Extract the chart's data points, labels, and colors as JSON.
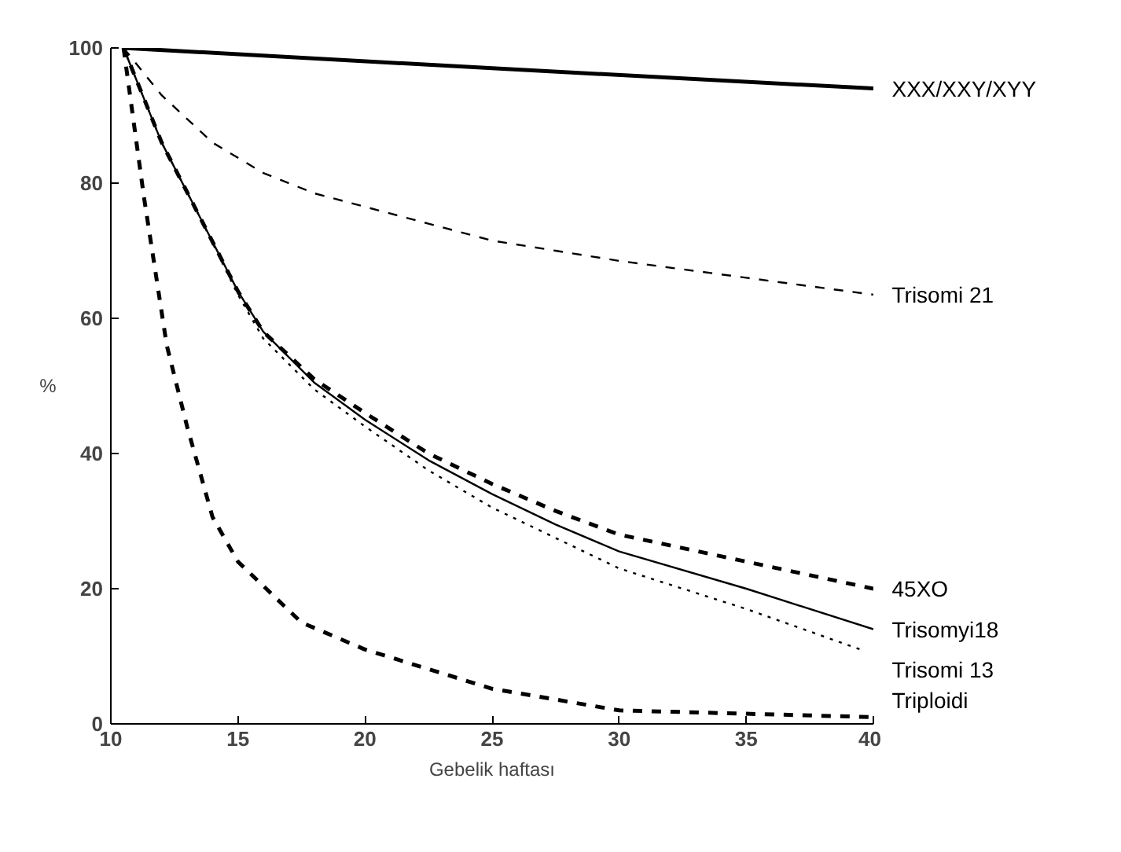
{
  "chart_data": {
    "type": "line",
    "xlabel": "Gebelik haftası",
    "ylabel": "%",
    "xlim": [
      10,
      40
    ],
    "ylim": [
      0,
      100
    ],
    "xticks": [
      10,
      15,
      20,
      25,
      30,
      35,
      40
    ],
    "yticks": [
      0,
      20,
      40,
      60,
      80,
      100
    ],
    "grid": false,
    "marker": "none",
    "series": [
      {
        "name": "XXX/XXY/XYY",
        "color": "#000000",
        "line_style": "solid",
        "x": [
          10.5,
          25,
          40
        ],
        "values": [
          100,
          97,
          94
        ]
      },
      {
        "name": "Trisomi 21",
        "color": "#000000",
        "line_style": "dashed",
        "x": [
          10.5,
          12,
          14,
          16,
          18,
          20,
          22.5,
          25,
          27.5,
          30,
          35,
          40
        ],
        "values": [
          100,
          93,
          86,
          81.5,
          78.5,
          76.5,
          74,
          71.5,
          70,
          68.5,
          66,
          63.5
        ]
      },
      {
        "name": "45XO",
        "color": "#000000",
        "line_style": "dashed",
        "x": [
          10.5,
          12,
          13.5,
          15,
          16,
          18,
          20,
          22.5,
          25,
          27.5,
          30,
          35,
          40
        ],
        "values": [
          100,
          86,
          75,
          64,
          58,
          51,
          46,
          40,
          35.5,
          31.5,
          28,
          24,
          20
        ]
      },
      {
        "name": "Trisomyi18",
        "color": "#000000",
        "line_style": "solid",
        "x": [
          10.5,
          12,
          13.5,
          15,
          16,
          18,
          20,
          22.5,
          25,
          27.5,
          30,
          35,
          40
        ],
        "values": [
          100,
          86,
          75,
          64,
          58,
          50.5,
          45,
          39,
          34,
          29.5,
          25.5,
          20,
          14
        ]
      },
      {
        "name": "Trisomi 13",
        "color": "#000000",
        "line_style": "dotted",
        "x": [
          10.5,
          12,
          13.5,
          15,
          16,
          18,
          20,
          22.5,
          25,
          27.5,
          30,
          35,
          39.5
        ],
        "values": [
          100,
          86,
          75,
          63.5,
          57,
          49.5,
          44,
          37.5,
          32,
          27.5,
          23,
          17,
          11
        ]
      },
      {
        "name": "Triploidi",
        "color": "#000000",
        "line_style": "dashed",
        "x": [
          10.5,
          11.3,
          12.2,
          13,
          14,
          15,
          17.5,
          20,
          25,
          30,
          40
        ],
        "values": [
          100,
          78,
          56,
          44,
          30.6,
          24,
          15,
          11,
          5.2,
          2,
          1
        ]
      }
    ]
  }
}
